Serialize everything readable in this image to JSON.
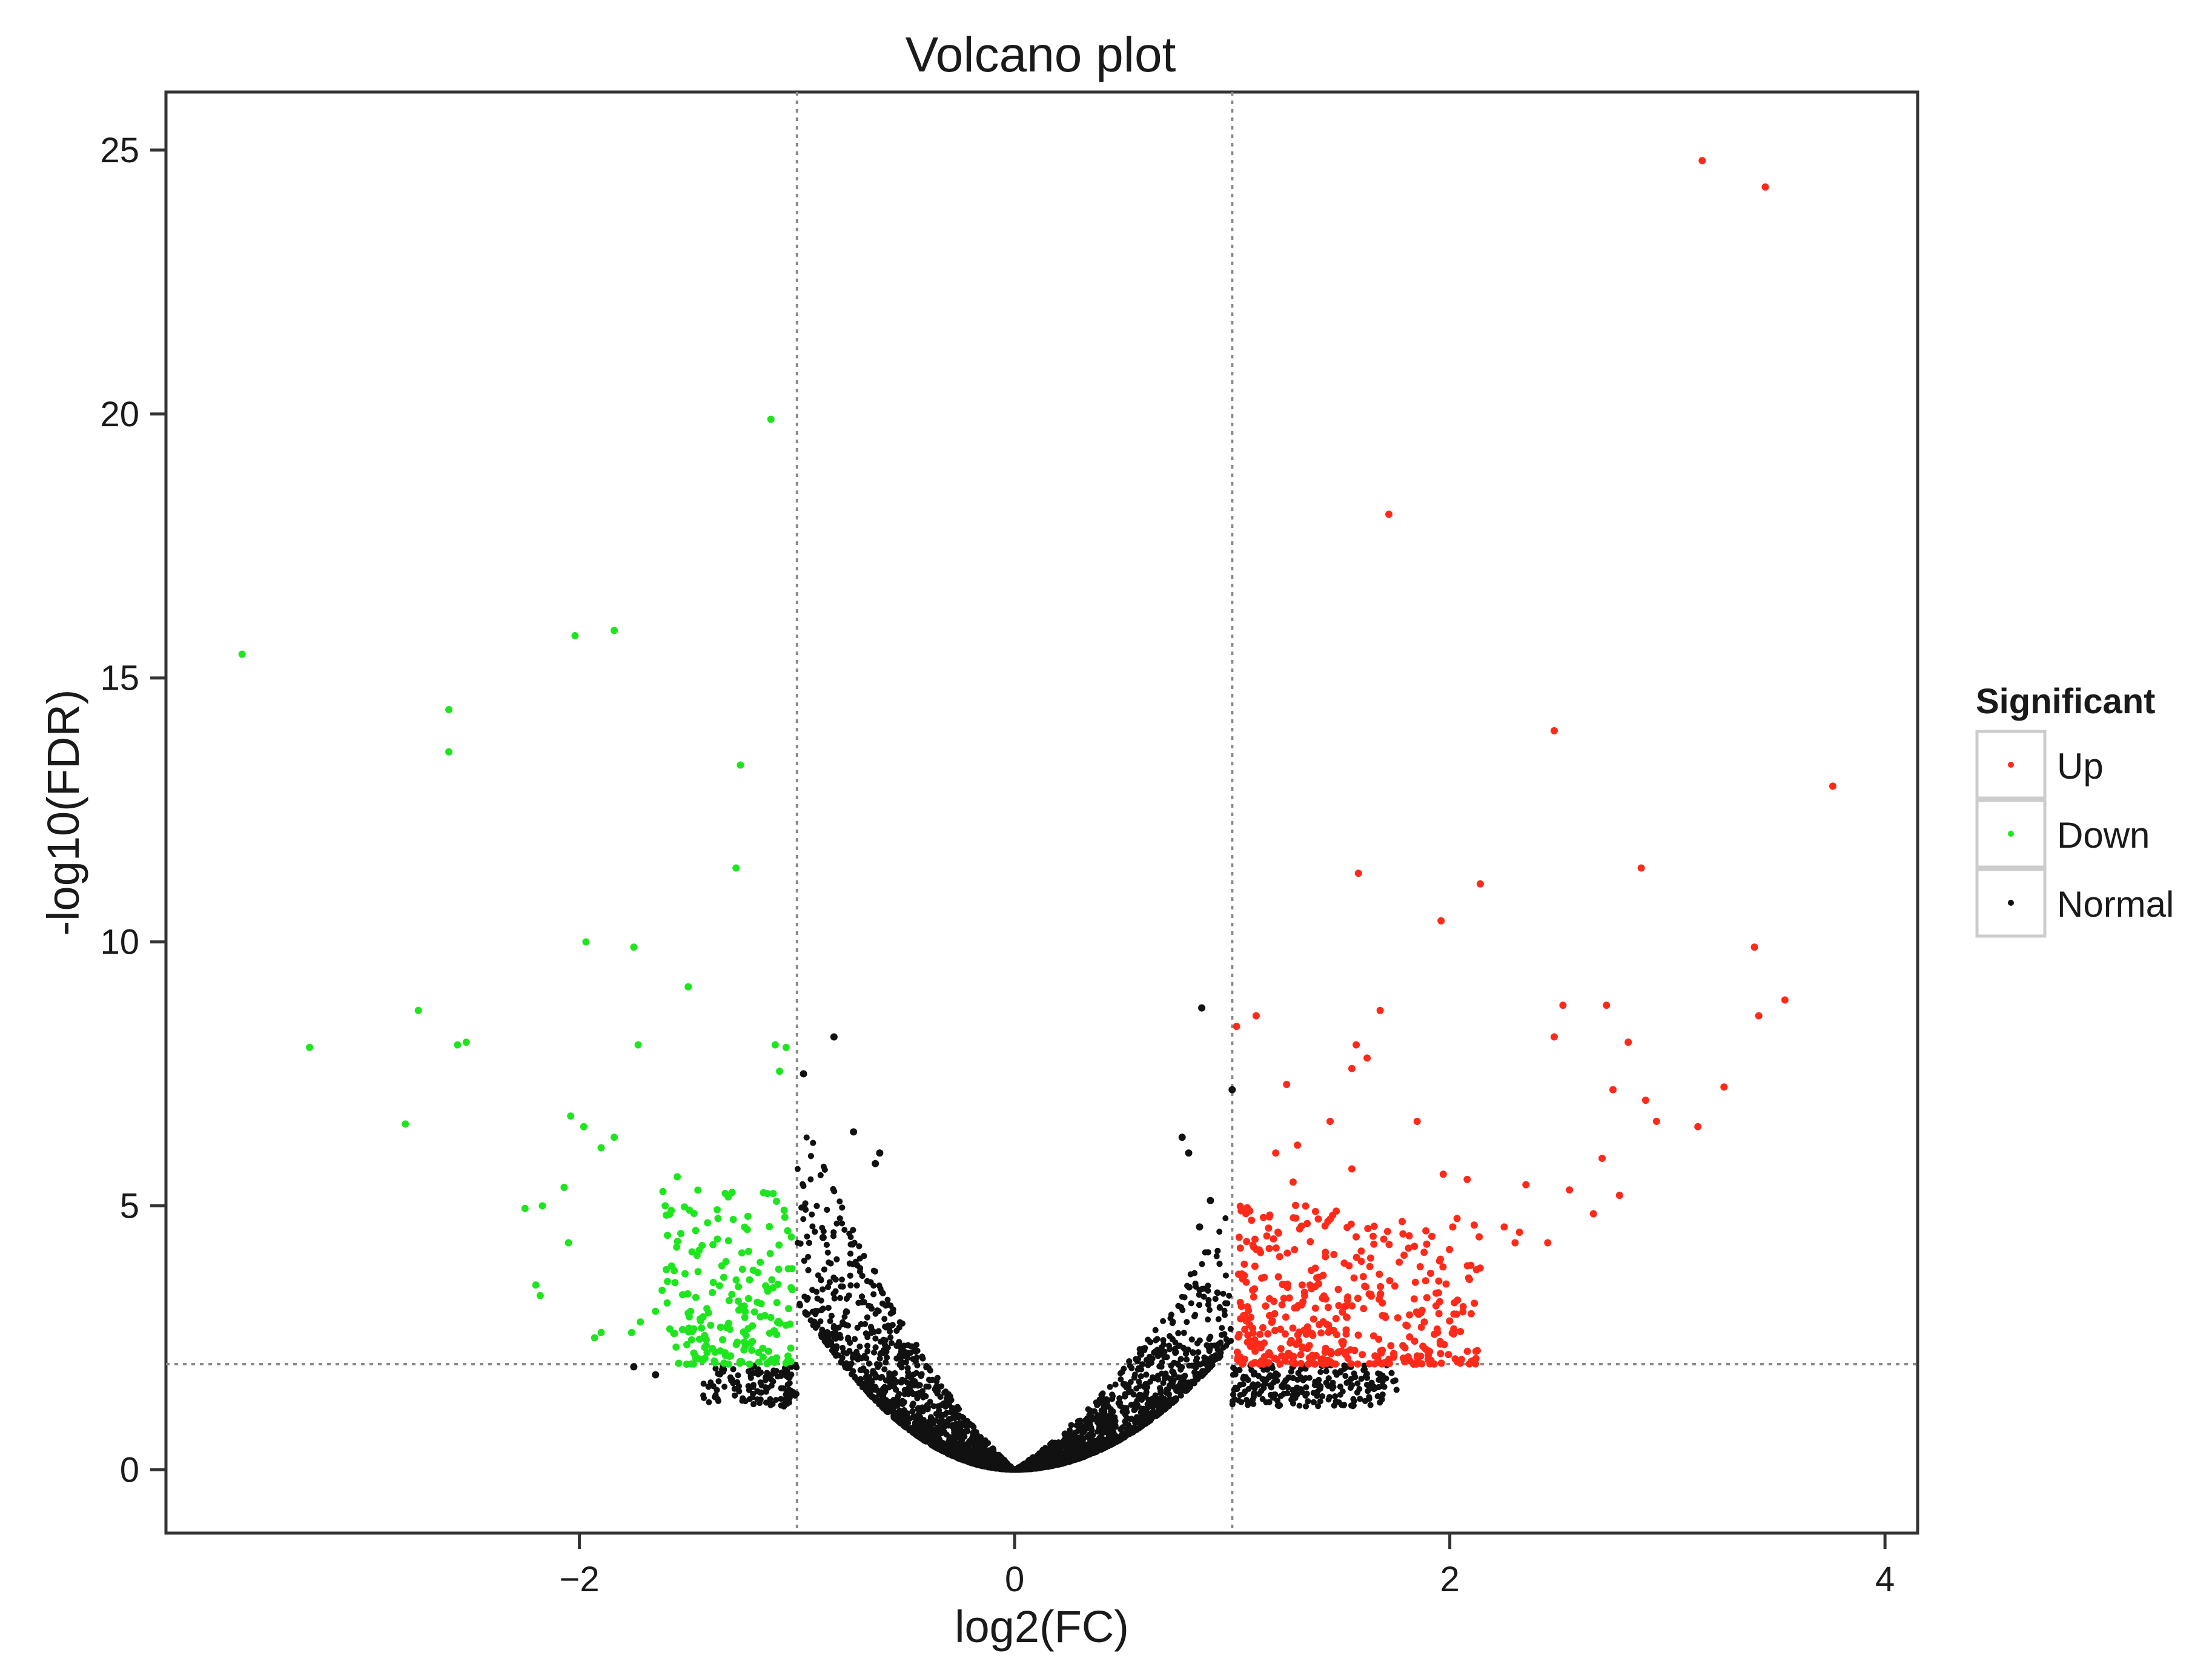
{
  "chart_data": {
    "type": "scatter",
    "title": "Volcano plot",
    "xlabel": "log2(FC)",
    "ylabel": "-log10(FDR)",
    "xlim": [
      -3.9,
      4.15
    ],
    "ylim": [
      -1.2,
      26.1
    ],
    "x_ticks": [
      -2,
      0,
      2,
      4
    ],
    "x_tick_labels": [
      "−2",
      "0",
      "2",
      "4"
    ],
    "y_ticks": [
      0,
      5,
      10,
      15,
      20,
      25
    ],
    "y_tick_labels": [
      "0",
      "5",
      "10",
      "15",
      "20",
      "25"
    ],
    "grid": false,
    "threshold_lines": {
      "x": [
        -1,
        1
      ],
      "y": [
        2
      ],
      "style": "dotted"
    },
    "legend": {
      "title": "Significant",
      "position": "right",
      "entries": [
        {
          "label": "Up",
          "color": "#ff2a1a"
        },
        {
          "label": "Down",
          "color": "#1ee61e"
        },
        {
          "label": "Normal",
          "color": "#111111"
        }
      ]
    },
    "series": [
      {
        "name": "Up",
        "color": "#ff2a1a",
        "points": [
          [
            3.16,
            24.8
          ],
          [
            3.45,
            24.3
          ],
          [
            1.72,
            18.1
          ],
          [
            2.48,
            14.0
          ],
          [
            3.76,
            12.95
          ],
          [
            1.58,
            11.3
          ],
          [
            2.14,
            11.1
          ],
          [
            2.88,
            11.4
          ],
          [
            1.96,
            10.4
          ],
          [
            3.4,
            9.9
          ],
          [
            1.11,
            8.6
          ],
          [
            1.68,
            8.7
          ],
          [
            2.52,
            8.8
          ],
          [
            2.72,
            8.8
          ],
          [
            3.42,
            8.6
          ],
          [
            3.54,
            8.9
          ],
          [
            2.48,
            8.2
          ],
          [
            2.82,
            8.1
          ],
          [
            1.57,
            8.05
          ],
          [
            1.02,
            8.4
          ],
          [
            1.55,
            7.6
          ],
          [
            1.62,
            7.8
          ],
          [
            1.25,
            7.3
          ],
          [
            2.75,
            7.2
          ],
          [
            2.9,
            7.0
          ],
          [
            3.26,
            7.25
          ],
          [
            2.95,
            6.6
          ],
          [
            3.14,
            6.5
          ],
          [
            1.85,
            6.6
          ],
          [
            1.45,
            6.6
          ],
          [
            1.55,
            5.7
          ],
          [
            1.3,
            6.15
          ],
          [
            1.2,
            6.0
          ],
          [
            2.7,
            5.9
          ],
          [
            1.97,
            5.6
          ],
          [
            2.08,
            5.5
          ],
          [
            1.28,
            5.45
          ],
          [
            2.35,
            5.4
          ],
          [
            2.55,
            5.3
          ],
          [
            2.78,
            5.2
          ],
          [
            2.66,
            4.85
          ],
          [
            2.3,
            4.3
          ],
          [
            2.45,
            4.3
          ],
          [
            2.32,
            4.5
          ],
          [
            2.25,
            4.6
          ]
        ],
        "generated_cluster": {
          "count": 420,
          "x_range": [
            1.0,
            2.15
          ],
          "y_min": 2.0,
          "y_max": 5.0
        }
      },
      {
        "name": "Down",
        "color": "#1ee61e",
        "points": [
          [
            -1.12,
            19.9
          ],
          [
            -3.55,
            15.45
          ],
          [
            -2.02,
            15.8
          ],
          [
            -1.84,
            15.9
          ],
          [
            -2.6,
            14.4
          ],
          [
            -2.6,
            13.6
          ],
          [
            -1.26,
            13.35
          ],
          [
            -1.28,
            11.4
          ],
          [
            -1.97,
            10.0
          ],
          [
            -1.75,
            9.9
          ],
          [
            -1.5,
            9.15
          ],
          [
            -2.74,
            8.7
          ],
          [
            -3.24,
            8.0
          ],
          [
            -2.56,
            8.05
          ],
          [
            -2.52,
            8.1
          ],
          [
            -1.73,
            8.05
          ],
          [
            -1.1,
            8.05
          ],
          [
            -1.05,
            8.0
          ],
          [
            -1.08,
            7.55
          ],
          [
            -2.8,
            6.55
          ],
          [
            -2.04,
            6.7
          ],
          [
            -1.98,
            6.5
          ],
          [
            -1.9,
            6.1
          ],
          [
            -1.84,
            6.3
          ],
          [
            -1.55,
            5.55
          ],
          [
            -2.17,
            5.0
          ],
          [
            -2.25,
            4.95
          ],
          [
            -2.07,
            5.35
          ],
          [
            -2.05,
            4.3
          ],
          [
            -2.2,
            3.5
          ],
          [
            -2.18,
            3.3
          ],
          [
            -1.93,
            2.5
          ],
          [
            -1.9,
            2.6
          ],
          [
            -1.76,
            2.6
          ],
          [
            -1.72,
            2.8
          ],
          [
            -1.62,
            3.4
          ],
          [
            -1.65,
            3.0
          ]
        ],
        "generated_cluster": {
          "count": 190,
          "x_range": [
            -1.62,
            -1.0
          ],
          "y_min": 2.0,
          "y_max": 5.3
        }
      },
      {
        "name": "Normal",
        "color": "#111111",
        "points": [
          [
            0.86,
            8.75
          ],
          [
            -0.83,
            8.2
          ],
          [
            1.0,
            7.2
          ],
          [
            -0.97,
            7.5
          ],
          [
            0.77,
            6.3
          ],
          [
            0.8,
            6.0
          ],
          [
            -0.74,
            6.4
          ],
          [
            -0.62,
            6.0
          ],
          [
            -0.64,
            5.8
          ],
          [
            0.9,
            5.1
          ],
          [
            0.85,
            4.6
          ],
          [
            -0.88,
            4.4
          ],
          [
            -1.65,
            1.8
          ],
          [
            -1.75,
            1.95
          ],
          [
            -1.3,
            1.7
          ]
        ],
        "generated_cluster": {
          "count": 6500,
          "x_range": [
            -1.5,
            2.0
          ],
          "shape": "volcano"
        }
      }
    ]
  }
}
